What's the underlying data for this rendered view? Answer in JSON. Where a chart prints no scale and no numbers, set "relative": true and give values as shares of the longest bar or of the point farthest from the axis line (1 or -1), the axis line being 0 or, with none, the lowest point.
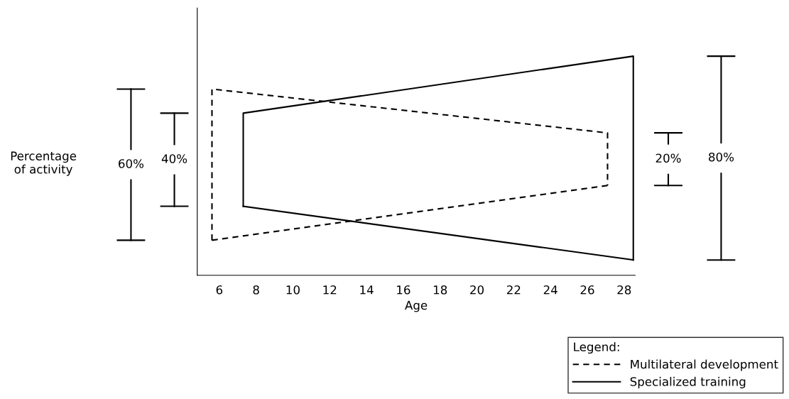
{
  "chart_data": {
    "type": "line",
    "relative": true,
    "xlabel": "Age",
    "xlim": [
      4.8,
      28.6
    ],
    "xticks": [
      6,
      8,
      10,
      12,
      14,
      16,
      18,
      20,
      22,
      24,
      26,
      28
    ],
    "tick_labels": "x",
    "grid": false,
    "legend": "bottom right",
    "legend_title": "Legend:",
    "marker": "none",
    "series": [
      {
        "name": "Multilateral development",
        "color": "#000000",
        "line_style": "dashed",
        "x": [
          5.6,
          5.6,
          27.1,
          27.1
        ],
        "values": [
          0.16,
          0.85,
          0.65,
          0.41
        ]
      },
      {
        "name": "Specialized training",
        "color": "#000000",
        "line_style": "solid",
        "x": [
          7.3,
          7.3,
          28.5,
          28.5
        ],
        "values": [
          0.315,
          0.74,
          1.0,
          0.07
        ]
      },
      {
        "color": "#000000",
        "line_style": "dashed",
        "x": [
          5.6,
          27.1
        ],
        "values": [
          0.16,
          0.41
        ]
      },
      {
        "color": "#000000",
        "line_style": "solid",
        "x": [
          7.3,
          28.5
        ],
        "values": [
          0.315,
          0.07
        ]
      }
    ],
    "annotations": [
      "Percentage\nof activity",
      "60%",
      "40%",
      "20%",
      "80%"
    ]
  }
}
